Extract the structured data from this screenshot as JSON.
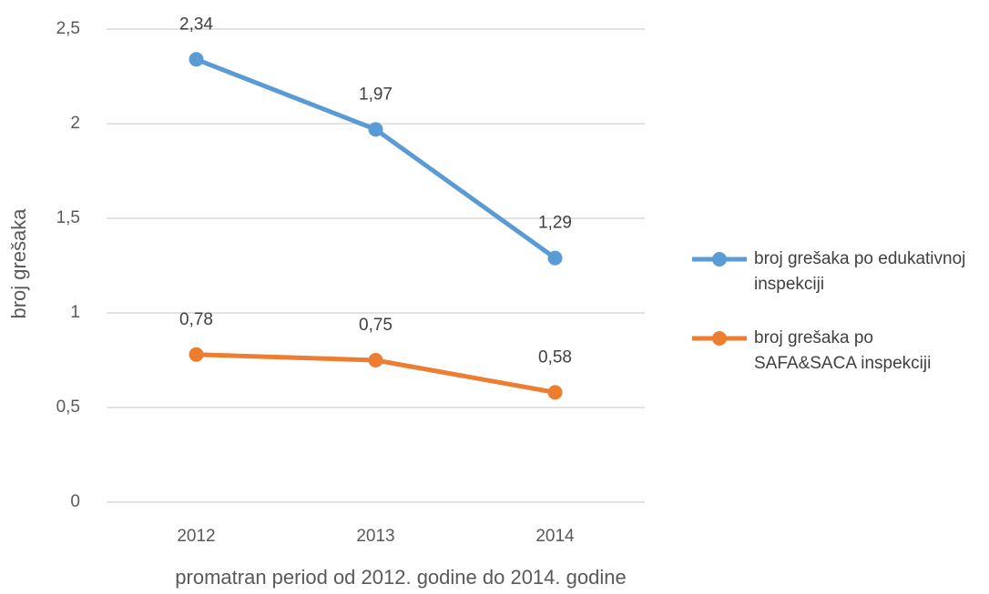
{
  "chart_data": {
    "type": "line",
    "x_label": "promatran period od 2012. godine do 2014. godine",
    "y_label": "broj grešaka",
    "categories": [
      "2012",
      "2013",
      "2014"
    ],
    "series": [
      {
        "name": "broj grešaka po edukativnoj inspekciji",
        "color": "#5b9bd5",
        "values": [
          2.34,
          1.97,
          1.29
        ],
        "value_labels": [
          "2,34",
          "1,97",
          "1,29"
        ]
      },
      {
        "name": "broj grešaka po SAFA&SACA inspekciji",
        "color": "#ed7d31",
        "values": [
          0.78,
          0.75,
          0.58
        ],
        "value_labels": [
          "0,78",
          "0,75",
          "0,58"
        ]
      }
    ],
    "ylim": [
      0,
      2.5
    ],
    "yticks": [
      {
        "value": 0,
        "label": "0"
      },
      {
        "value": 0.5,
        "label": "0,5"
      },
      {
        "value": 1,
        "label": "1"
      },
      {
        "value": 1.5,
        "label": "1,5"
      },
      {
        "value": 2,
        "label": "2"
      },
      {
        "value": 2.5,
        "label": "2,5"
      }
    ],
    "grid": true,
    "legend": "right"
  }
}
